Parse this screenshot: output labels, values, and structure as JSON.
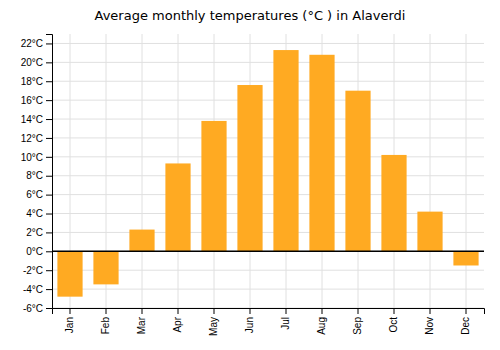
{
  "chart_data": {
    "type": "bar",
    "title": "Average monthly temperatures (°C ) in Alaverdi",
    "categories": [
      "Jan",
      "Feb",
      "Mar",
      "Apr",
      "May",
      "Jun",
      "Jul",
      "Aug",
      "Sep",
      "Oct",
      "Nov",
      "Dec"
    ],
    "values": [
      -4.8,
      -3.5,
      2.3,
      9.3,
      13.8,
      17.6,
      21.3,
      20.8,
      17.0,
      10.2,
      4.2,
      -1.5
    ],
    "color": "#FFAA22",
    "ylim": [
      -6,
      23
    ],
    "yticks": [
      {
        "value": -6,
        "label": "-6°C"
      },
      {
        "value": -4,
        "label": "-4°C"
      },
      {
        "value": -2,
        "label": "-2°C"
      },
      {
        "value": 0,
        "label": "0°C"
      },
      {
        "value": 2,
        "label": "2°C"
      },
      {
        "value": 4,
        "label": "4°C"
      },
      {
        "value": 6,
        "label": "6°C"
      },
      {
        "value": 8,
        "label": "8°C"
      },
      {
        "value": 10,
        "label": "10°C"
      },
      {
        "value": 12,
        "label": "12°C"
      },
      {
        "value": 14,
        "label": "14°C"
      },
      {
        "value": 16,
        "label": "16°C"
      },
      {
        "value": 18,
        "label": "18°C"
      },
      {
        "value": 20,
        "label": "20°C"
      },
      {
        "value": 22,
        "label": "22°C"
      }
    ],
    "grid": true
  }
}
